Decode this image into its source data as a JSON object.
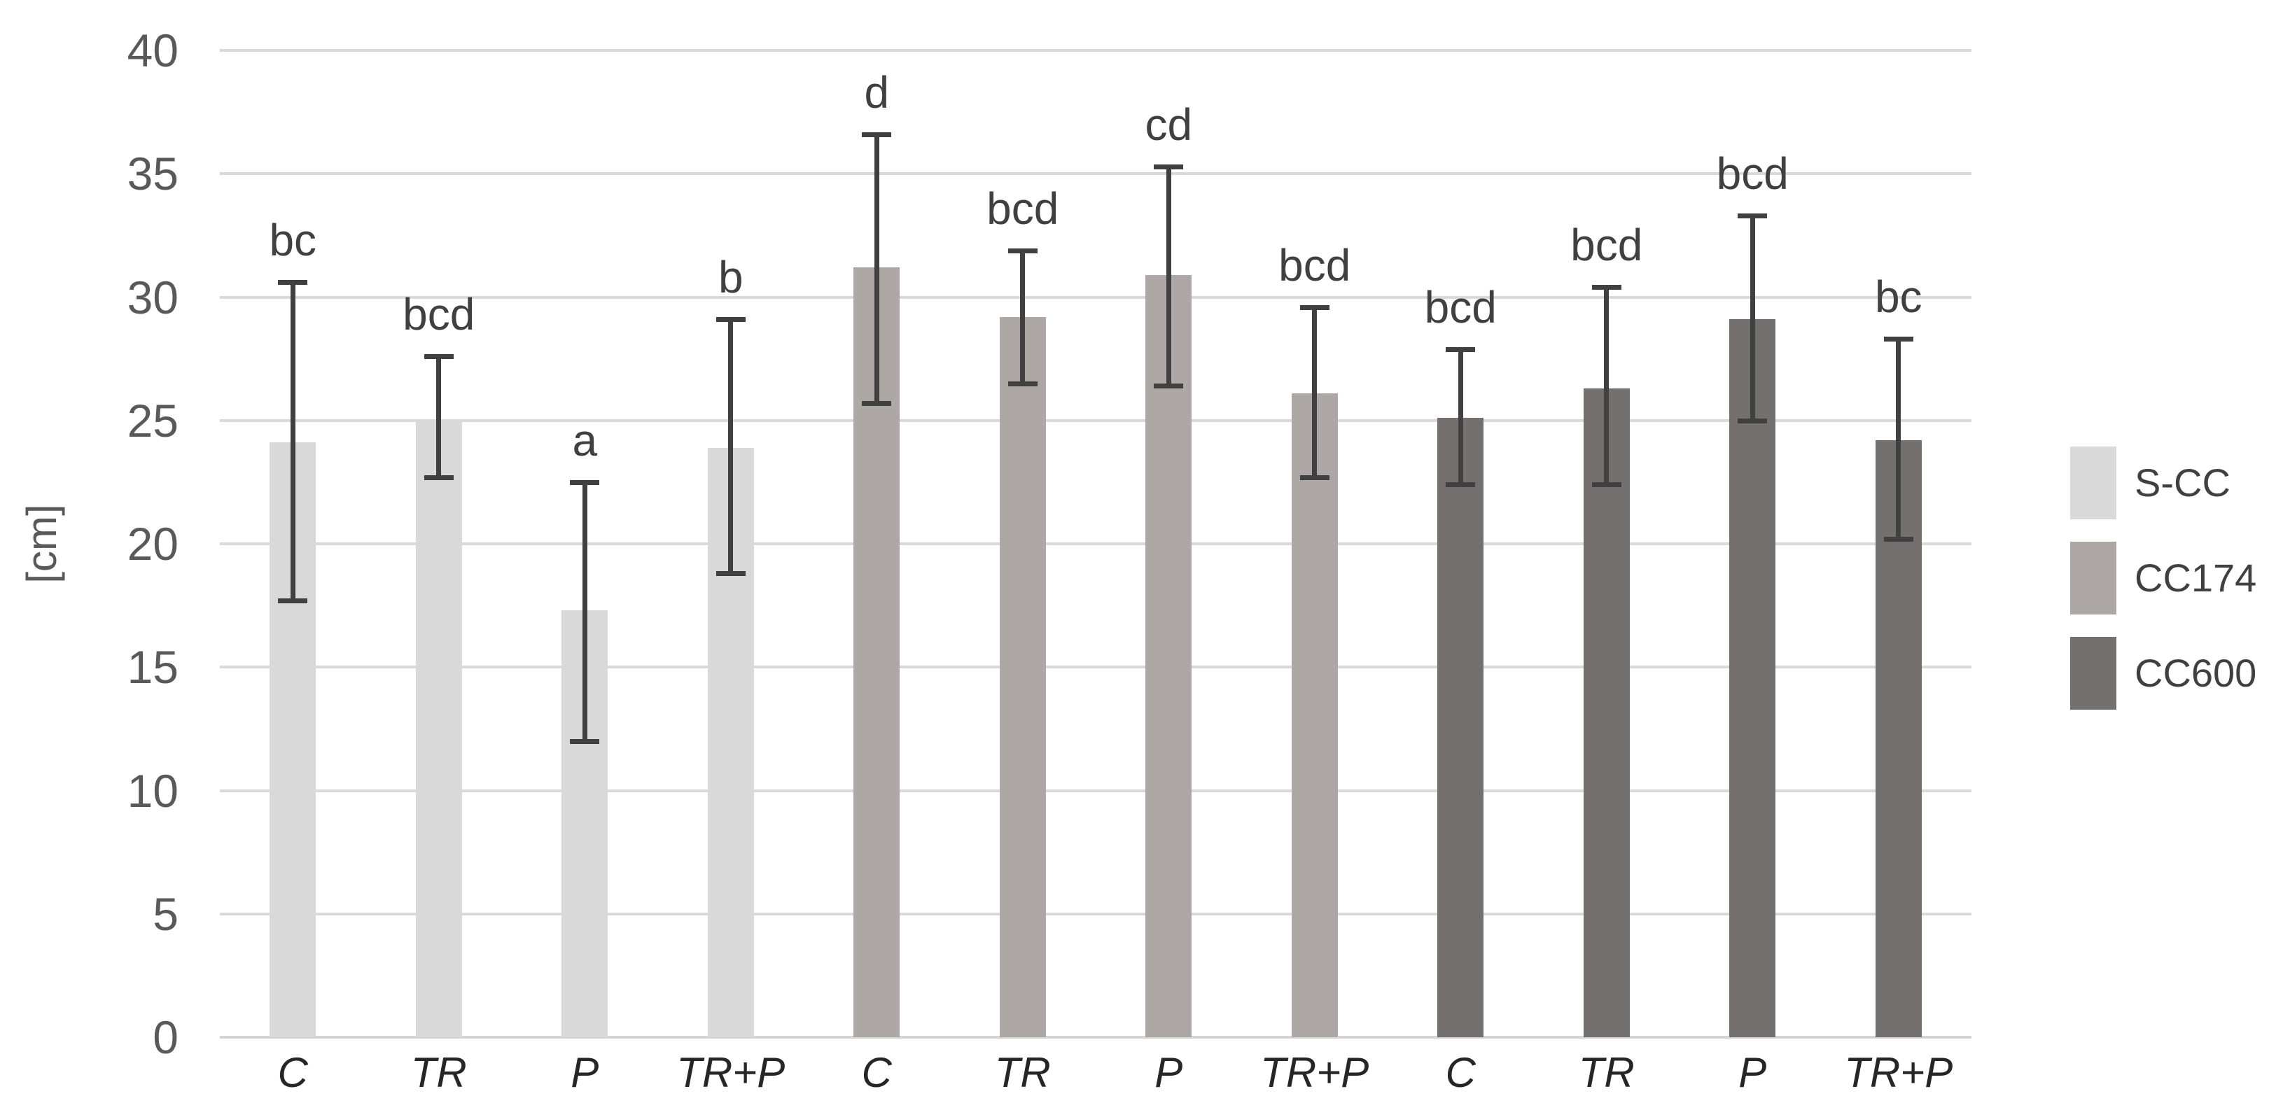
{
  "chart_data": {
    "type": "bar",
    "title": "",
    "xlabel": "",
    "ylabel": "[cm]",
    "ylim": [
      0,
      40
    ],
    "yticks": [
      0,
      5,
      10,
      15,
      20,
      25,
      30,
      35,
      40
    ],
    "grid": true,
    "legend_position": "right",
    "categories": [
      "C",
      "TR",
      "P",
      "TR+P",
      "C",
      "TR",
      "P",
      "TR+P",
      "C",
      "TR",
      "P",
      "TR+P"
    ],
    "series": [
      {
        "name": "S-CC",
        "color": "#d9d9d9",
        "bars": [
          {
            "category": "C",
            "value": 24.1,
            "err_low": 17.7,
            "err_high": 30.6,
            "letter": "bc"
          },
          {
            "category": "TR",
            "value": 25.0,
            "err_low": 22.7,
            "err_high": 27.6,
            "letter": "bcd"
          },
          {
            "category": "P",
            "value": 17.3,
            "err_low": 12.0,
            "err_high": 22.5,
            "letter": "a"
          },
          {
            "category": "TR+P",
            "value": 23.9,
            "err_low": 18.8,
            "err_high": 29.1,
            "letter": "b"
          }
        ]
      },
      {
        "name": "CC174",
        "color": "#ada8a5",
        "bars": [
          {
            "category": "C",
            "value": 31.2,
            "err_low": 25.7,
            "err_high": 36.6,
            "letter": "d"
          },
          {
            "category": "TR",
            "value": 29.2,
            "err_low": 26.5,
            "err_high": 31.9,
            "letter": "bcd"
          },
          {
            "category": "P",
            "value": 30.9,
            "err_low": 26.4,
            "err_high": 35.3,
            "letter": "cd"
          },
          {
            "category": "TR+P",
            "value": 26.1,
            "err_low": 22.7,
            "err_high": 29.6,
            "letter": "bcd"
          }
        ]
      },
      {
        "name": "CC600",
        "color": "#757070",
        "bars": [
          {
            "category": "C",
            "value": 25.1,
            "err_low": 22.4,
            "err_high": 27.9,
            "letter": "bcd"
          },
          {
            "category": "TR",
            "value": 26.3,
            "err_low": 22.4,
            "err_high": 30.4,
            "letter": "bcd"
          },
          {
            "category": "P",
            "value": 29.1,
            "err_low": 25.0,
            "err_high": 33.3,
            "letter": "bcd"
          },
          {
            "category": "TR+P",
            "value": 24.2,
            "err_low": 20.2,
            "err_high": 28.3,
            "letter": "bc"
          }
        ]
      }
    ],
    "legend": [
      {
        "label": "S-CC",
        "color": "#d9d9d9"
      },
      {
        "label": "CC174",
        "color": "#ada8a5"
      },
      {
        "label": "CC600",
        "color": "#757070"
      }
    ],
    "colors": {
      "error_bar": "#404040",
      "gridline": "#d9d9d9",
      "axis_line": "#d4d4d4",
      "tick_label": "#595959",
      "category_label": "#262626",
      "letter": "#404040",
      "background": "#ffffff"
    }
  }
}
